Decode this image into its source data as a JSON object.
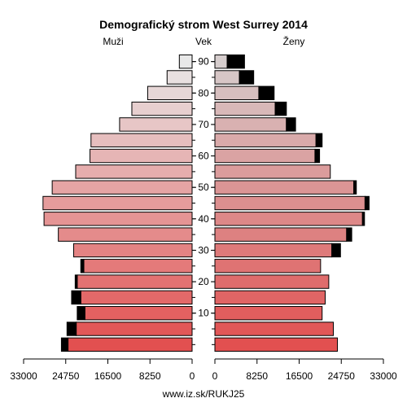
{
  "chart_data": {
    "type": "bar",
    "title": "Demografický strom West Surrey 2014",
    "left_label": "Muži",
    "center_label": "Vek",
    "right_label": "Ženy",
    "source": "www.iz.sk/RUKJ25",
    "x_ticks_left": [
      "33000",
      "24750",
      "16500",
      "8250",
      "0"
    ],
    "x_ticks_right": [
      "0",
      "8250",
      "16500",
      "24750",
      "33000"
    ],
    "x_max": 33000,
    "age_ticks": [
      "10",
      "20",
      "30",
      "40",
      "50",
      "60",
      "70",
      "80",
      "90"
    ],
    "age_groups": [
      "0",
      "5",
      "10",
      "15",
      "20",
      "25",
      "30",
      "35",
      "40",
      "45",
      "50",
      "55",
      "60",
      "65",
      "70",
      "75",
      "80",
      "85",
      "90"
    ],
    "series": [
      {
        "name": "Muži",
        "values": [
          24300,
          22700,
          21000,
          21800,
          22500,
          21200,
          23200,
          26200,
          29000,
          29200,
          27400,
          22800,
          20000,
          19800,
          14200,
          11800,
          8700,
          4900,
          2500
        ],
        "extra": [
          1300,
          1800,
          1500,
          1800,
          400,
          600,
          0,
          0,
          0,
          0,
          0,
          0,
          0,
          0,
          0,
          0,
          0,
          0,
          0
        ]
      },
      {
        "name": "Ženy",
        "values": [
          24000,
          23200,
          21000,
          21600,
          22300,
          20700,
          22900,
          25800,
          28900,
          29400,
          27200,
          22600,
          19600,
          19800,
          14000,
          11800,
          8600,
          4800,
          2400
        ],
        "extra": [
          0,
          0,
          0,
          0,
          0,
          0,
          1700,
          1000,
          400,
          800,
          500,
          0,
          900,
          1200,
          1800,
          2200,
          3000,
          2800,
          3400
        ]
      }
    ]
  }
}
